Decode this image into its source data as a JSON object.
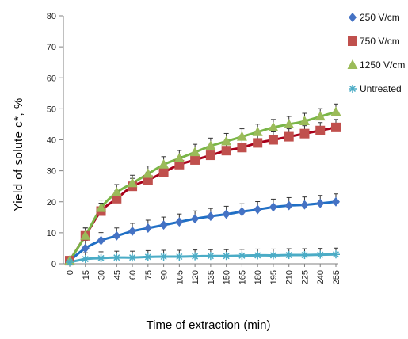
{
  "chart_data": {
    "type": "line",
    "xlabel": "Time of extraction (min)",
    "ylabel": "Yield of solute c*, %",
    "xticks": [
      0,
      15,
      30,
      45,
      60,
      75,
      90,
      105,
      120,
      135,
      150,
      165,
      180,
      195,
      210,
      225,
      240,
      255
    ],
    "ylim": [
      0,
      80
    ],
    "yticks": [
      0,
      10,
      20,
      30,
      40,
      50,
      60,
      70,
      80
    ],
    "grid": false,
    "legend_position": "top-right",
    "series": [
      {
        "name": "250 V/cm",
        "marker": "diamond",
        "color": "#4472C4",
        "fit_color": "#1F6FC5",
        "x": [
          0,
          15,
          30,
          45,
          60,
          75,
          90,
          105,
          120,
          135,
          150,
          165,
          180,
          195,
          210,
          225,
          240,
          255
        ],
        "y": [
          1,
          5,
          7.5,
          9,
          10.5,
          11.5,
          12.5,
          13.5,
          14.5,
          15.3,
          16,
          16.8,
          17.5,
          18.3,
          18.8,
          19,
          19.5,
          20
        ]
      },
      {
        "name": "750 V/cm",
        "marker": "square",
        "color": "#C0504D",
        "fit_color": "#A8001A",
        "x": [
          0,
          15,
          30,
          45,
          60,
          75,
          90,
          105,
          120,
          135,
          150,
          165,
          180,
          195,
          210,
          225,
          240,
          255
        ],
        "y": [
          1,
          9,
          17,
          21,
          25,
          27,
          29.5,
          32,
          33.5,
          35,
          36.5,
          37.5,
          39,
          40,
          41,
          42,
          43,
          44
        ]
      },
      {
        "name": "1250 V/cm",
        "marker": "triangle",
        "color": "#9BBB59",
        "fit_color": "#7AB648",
        "x": [
          0,
          15,
          30,
          45,
          60,
          75,
          90,
          105,
          120,
          135,
          150,
          165,
          180,
          195,
          210,
          225,
          240,
          255
        ],
        "y": [
          1,
          9,
          18,
          23,
          26,
          29,
          32,
          34,
          36,
          38,
          39.5,
          41,
          42.5,
          44,
          45,
          46,
          47.5,
          49
        ]
      },
      {
        "name": "Untreated",
        "marker": "asterisk",
        "color": "#4BACC6",
        "fit_color": "#4BACC6",
        "x": [
          0,
          15,
          30,
          45,
          60,
          75,
          90,
          105,
          120,
          135,
          150,
          165,
          180,
          195,
          210,
          225,
          240,
          255
        ],
        "y": [
          0.5,
          1.5,
          1.8,
          2,
          2,
          2.2,
          2.3,
          2.3,
          2.4,
          2.5,
          2.5,
          2.6,
          2.7,
          2.7,
          2.8,
          2.8,
          2.9,
          3
        ]
      }
    ]
  }
}
